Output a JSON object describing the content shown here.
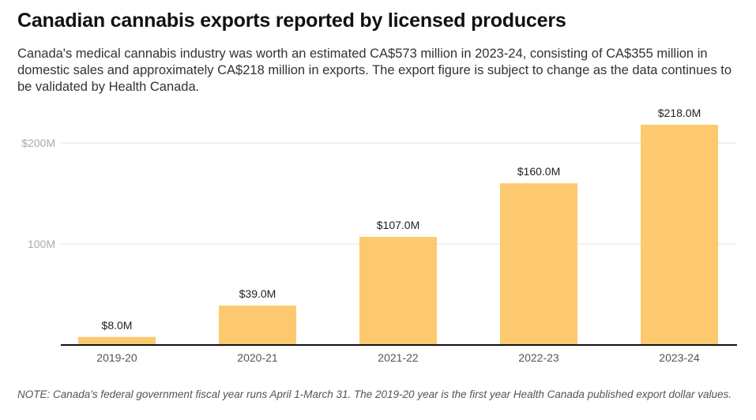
{
  "chart_data": {
    "type": "bar",
    "title": "Canadian cannabis exports reported by licensed producers",
    "subtitle": "Canada's medical cannabis industry was worth an estimated CA$573 million in 2023-24, consisting of CA$355 million in domestic sales and approximately CA$218 million in exports. The export figure is subject to change as the data continues to be validated by Health Canada.",
    "categories": [
      "2019-20",
      "2020-21",
      "2021-22",
      "2022-23",
      "2023-24"
    ],
    "values": [
      8.0,
      39.0,
      107.0,
      160.0,
      218.0
    ],
    "data_labels": [
      "$8.0M",
      "$39.0M",
      "$107.0M",
      "$160.0M",
      "$218.0M"
    ],
    "unit": "millions CAD",
    "yticks": [
      {
        "value": 100,
        "label": "100M"
      },
      {
        "value": 200,
        "label": "$200M"
      }
    ],
    "ylim": [
      0,
      218
    ],
    "grid": true,
    "bar_color": "#fdc96e",
    "note": "NOTE: Canada's federal government fiscal year runs April 1-March 31. The 2019-20 year is the first year Health Canada published export dollar values."
  }
}
